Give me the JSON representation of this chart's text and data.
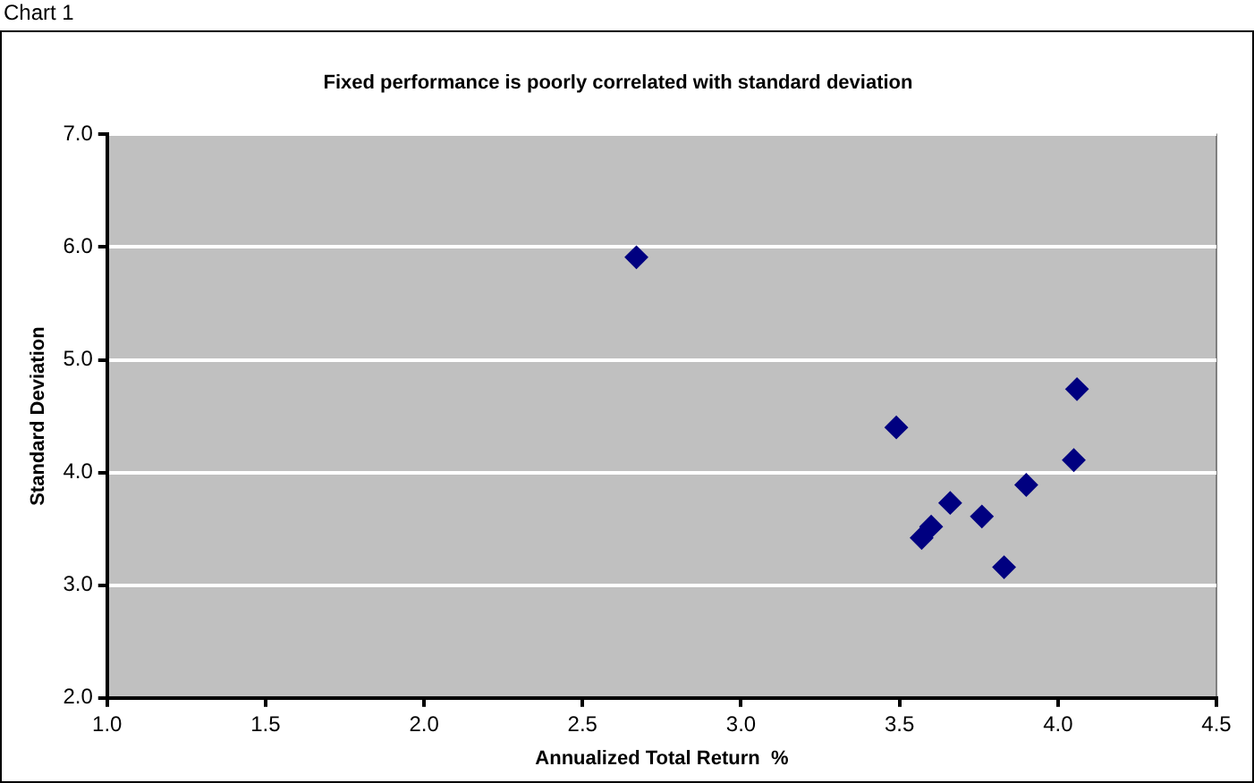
{
  "chart_data": {
    "type": "scatter",
    "title": "Fixed performance is poorly correlated with standard deviation",
    "xlabel": "Annualized Total Return  %",
    "ylabel": "Standard Deviation",
    "annotations": [
      "Chart 1"
    ],
    "series": [
      {
        "color": "#000080",
        "x": [
          2.67,
          3.49,
          4.06,
          4.05,
          3.9,
          3.66,
          3.76,
          3.6,
          3.57,
          3.83
        ],
        "values": [
          5.91,
          4.4,
          4.74,
          4.11,
          3.89,
          3.73,
          3.61,
          3.52,
          3.42,
          3.16
        ]
      }
    ],
    "xlim": [
      1.0,
      4.5
    ],
    "xticks": [
      {
        "value": 1,
        "label": "1.0"
      },
      {
        "value": 1.5,
        "label": "1.5"
      },
      {
        "value": 2,
        "label": "2.0"
      },
      {
        "value": 2.5,
        "label": "2.5"
      },
      {
        "value": 3,
        "label": "3.0"
      },
      {
        "value": 3.5,
        "label": "3.5"
      },
      {
        "value": 4,
        "label": "4.0"
      },
      {
        "value": 4.5,
        "label": "4.5"
      }
    ],
    "ylim": [
      2.0,
      7.0
    ],
    "yticks": [
      {
        "value": 2,
        "label": "2.0"
      },
      {
        "value": 3,
        "label": "3.0"
      },
      {
        "value": 4,
        "label": "4.0"
      },
      {
        "value": 5,
        "label": "5.0"
      },
      {
        "value": 6,
        "label": "6.0"
      },
      {
        "value": 7,
        "label": "7.0"
      }
    ],
    "grid": "y",
    "legend": false,
    "marker": "diamond"
  }
}
